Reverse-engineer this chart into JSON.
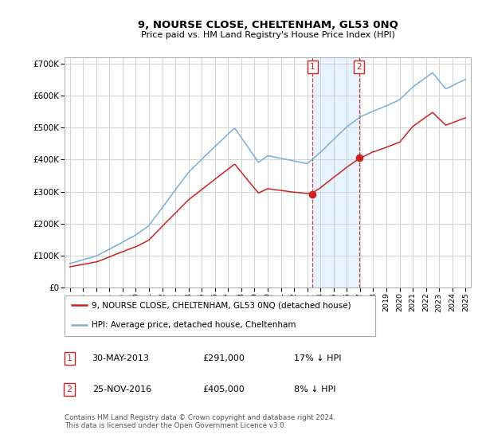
{
  "title": "9, NOURSE CLOSE, CHELTENHAM, GL53 0NQ",
  "subtitle": "Price paid vs. HM Land Registry's House Price Index (HPI)",
  "ylim": [
    0,
    720000
  ],
  "yticks": [
    0,
    100000,
    200000,
    300000,
    400000,
    500000,
    600000,
    700000
  ],
  "ytick_labels": [
    "£0",
    "£100K",
    "£200K",
    "£300K",
    "£400K",
    "£500K",
    "£600K",
    "£700K"
  ],
  "hpi_color": "#7aaed6",
  "price_color": "#cc2222",
  "t1_year": 2013.41,
  "t1_price": 291000,
  "t2_year": 2016.92,
  "t2_price": 405000,
  "legend_price_label": "9, NOURSE CLOSE, CHELTENHAM, GL53 0NQ (detached house)",
  "legend_hpi_label": "HPI: Average price, detached house, Cheltenham",
  "footnote": "Contains HM Land Registry data © Crown copyright and database right 2024.\nThis data is licensed under the Open Government Licence v3.0.",
  "background_color": "#ffffff",
  "grid_color": "#cccccc",
  "shade_color": "#ddeeff",
  "xlim_left": 1994.6,
  "xlim_right": 2025.4
}
